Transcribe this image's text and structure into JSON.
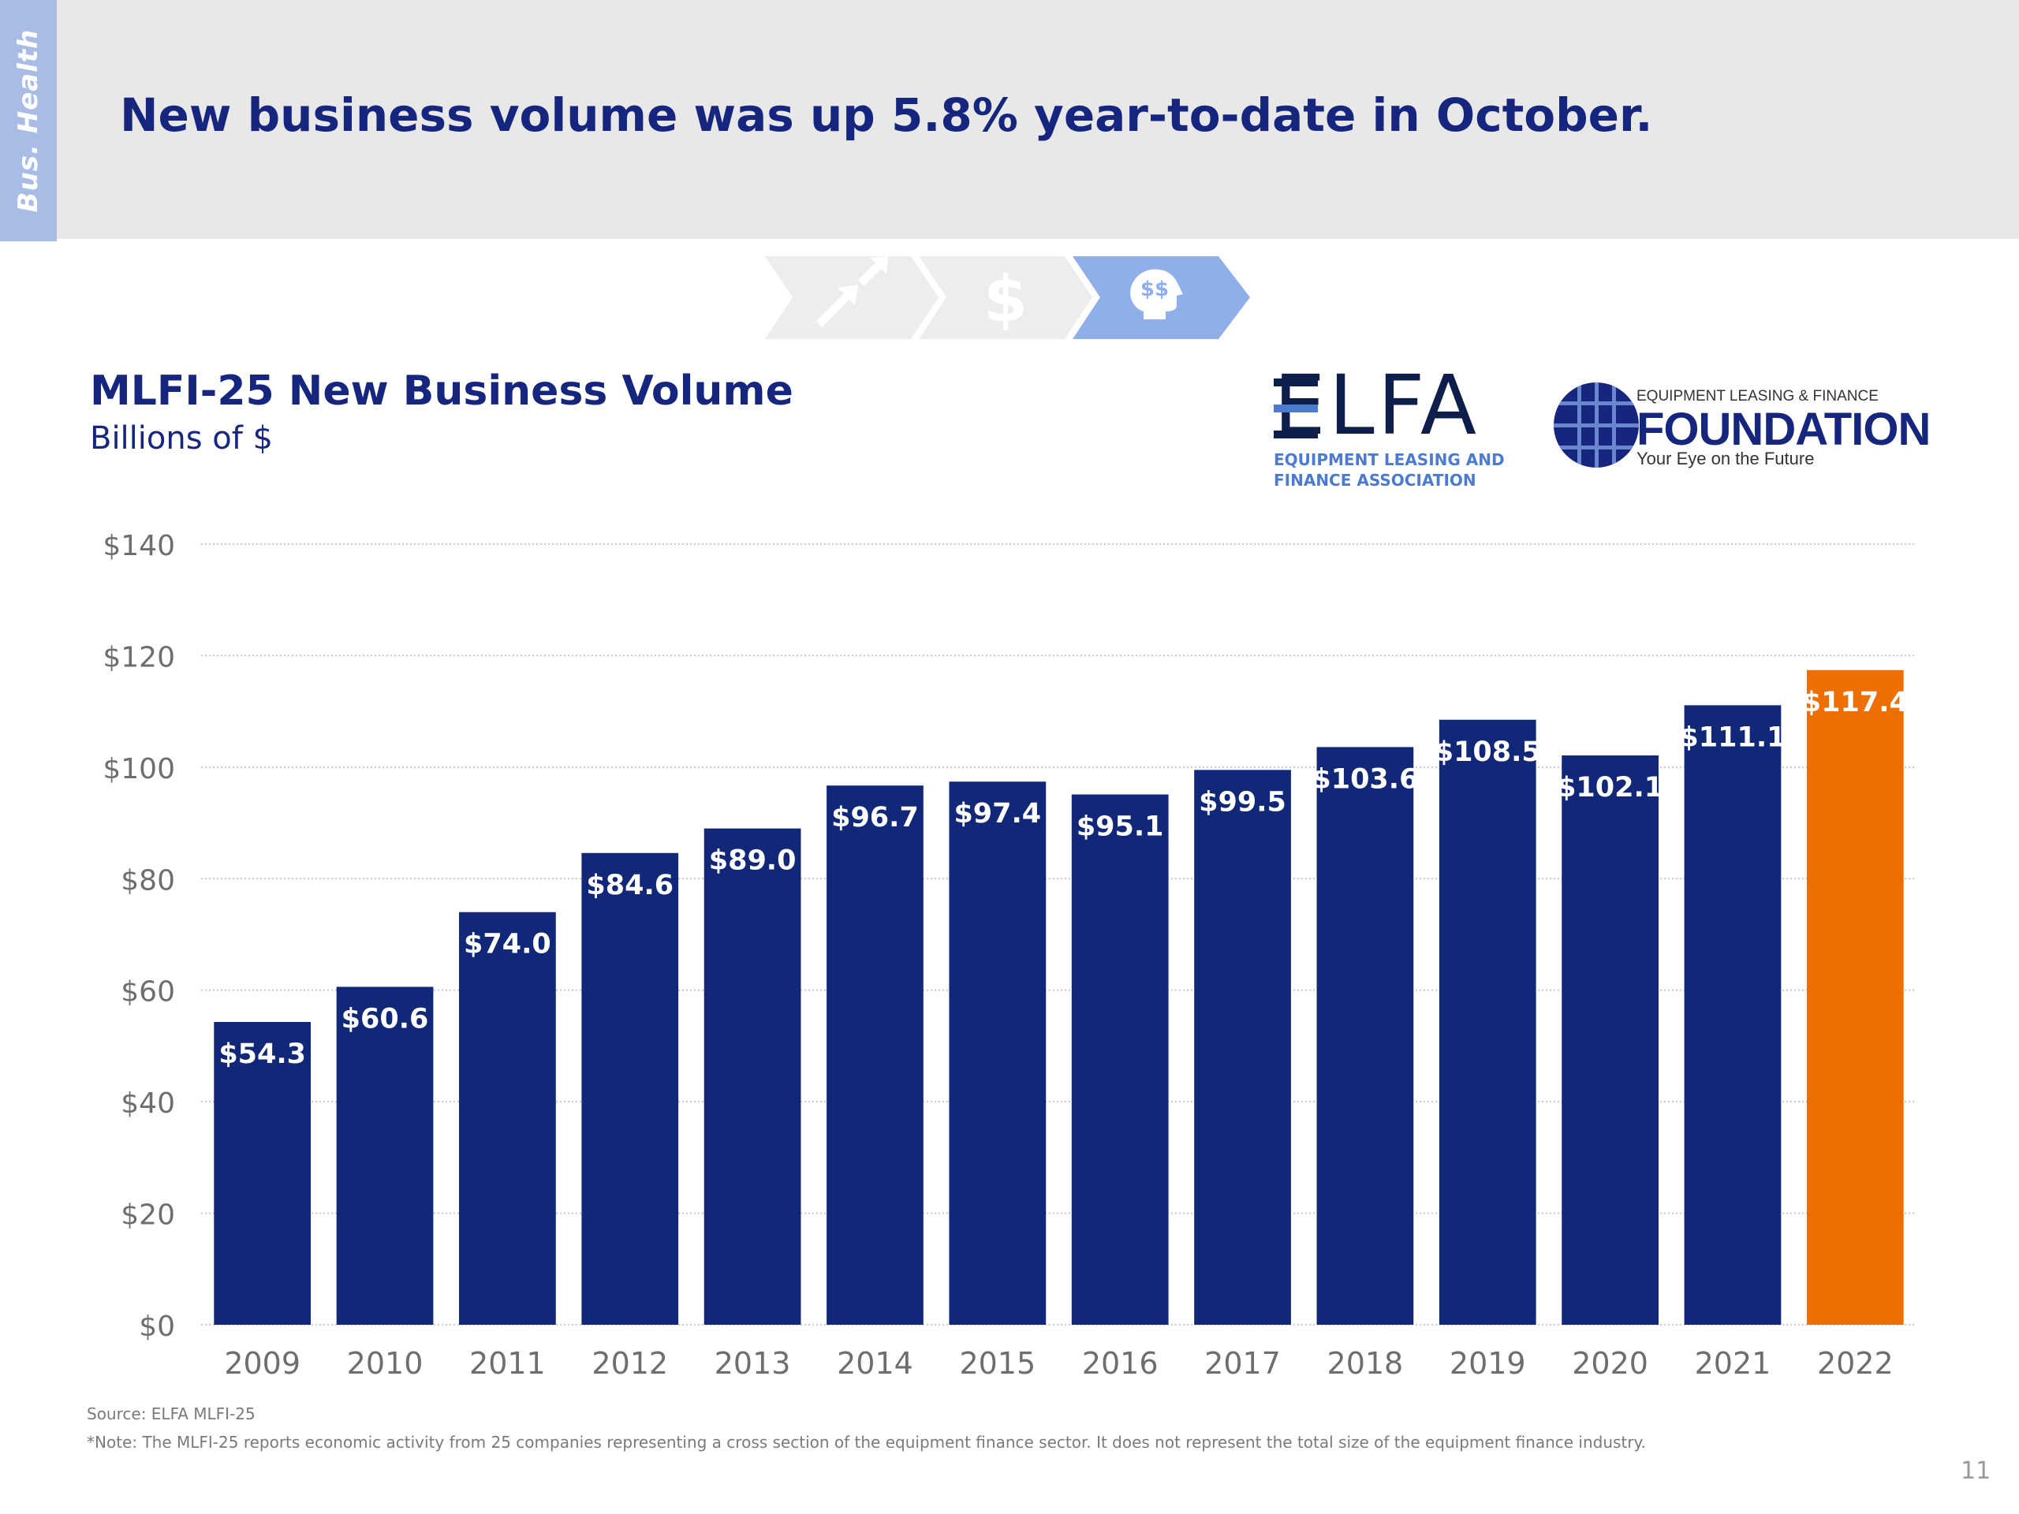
{
  "section_tab": "Bus. Health",
  "headline": "New business volume was up 5.8% year-to-date in October.",
  "elfa_logo": {
    "word": "ELFA",
    "sub_line1": "EQUIPMENT LEASING AND",
    "sub_line2": "FINANCE ASSOCIATION"
  },
  "foundation_logo": {
    "top": "EQUIPMENT LEASING & FINANCE",
    "main": "FOUNDATION",
    "tagline": "Your Eye on the Future"
  },
  "colors": {
    "bar": "#112878",
    "highlight_bar": "#EE6F00",
    "headline": "#16267F",
    "grid": "#C8C8C8",
    "axis_text": "#6E6E6E"
  },
  "icons": [
    "growth-arrows-icon",
    "dollar-icon",
    "head-dollar-icon"
  ],
  "chart_data": {
    "type": "bar",
    "title": "MLFI-25 New Business Volume",
    "subtitle": "Billions of $",
    "xlabel": "",
    "ylabel": "",
    "categories": [
      "2009",
      "2010",
      "2011",
      "2012",
      "2013",
      "2014",
      "2015",
      "2016",
      "2017",
      "2018",
      "2019",
      "2020",
      "2021",
      "2022"
    ],
    "values": [
      54.3,
      60.6,
      74.0,
      84.6,
      89.0,
      96.7,
      97.4,
      95.1,
      99.5,
      103.6,
      108.5,
      102.1,
      111.1,
      117.4
    ],
    "data_labels": [
      "$54.3",
      "$60.6",
      "$74.0",
      "$84.6",
      "$89.0",
      "$96.7",
      "$97.4",
      "$95.1",
      "$99.5",
      "$103.6",
      "$108.5",
      "$102.1",
      "$111.1",
      "$117.4"
    ],
    "highlight_category": "2022",
    "ylim": [
      0,
      140
    ],
    "yticks": [
      0,
      20,
      40,
      60,
      80,
      100,
      120,
      140
    ],
    "ytick_labels": [
      "$0",
      "$20",
      "$40",
      "$60",
      "$80",
      "$100",
      "$120",
      "$140"
    ],
    "grid": true
  },
  "source": "Source: ELFA MLFI-25",
  "note": "*Note: The MLFI-25 reports economic activity from 25 companies representing a cross section of the equipment finance sector. It does not represent the total size of the equipment finance industry.",
  "page_number": "11"
}
